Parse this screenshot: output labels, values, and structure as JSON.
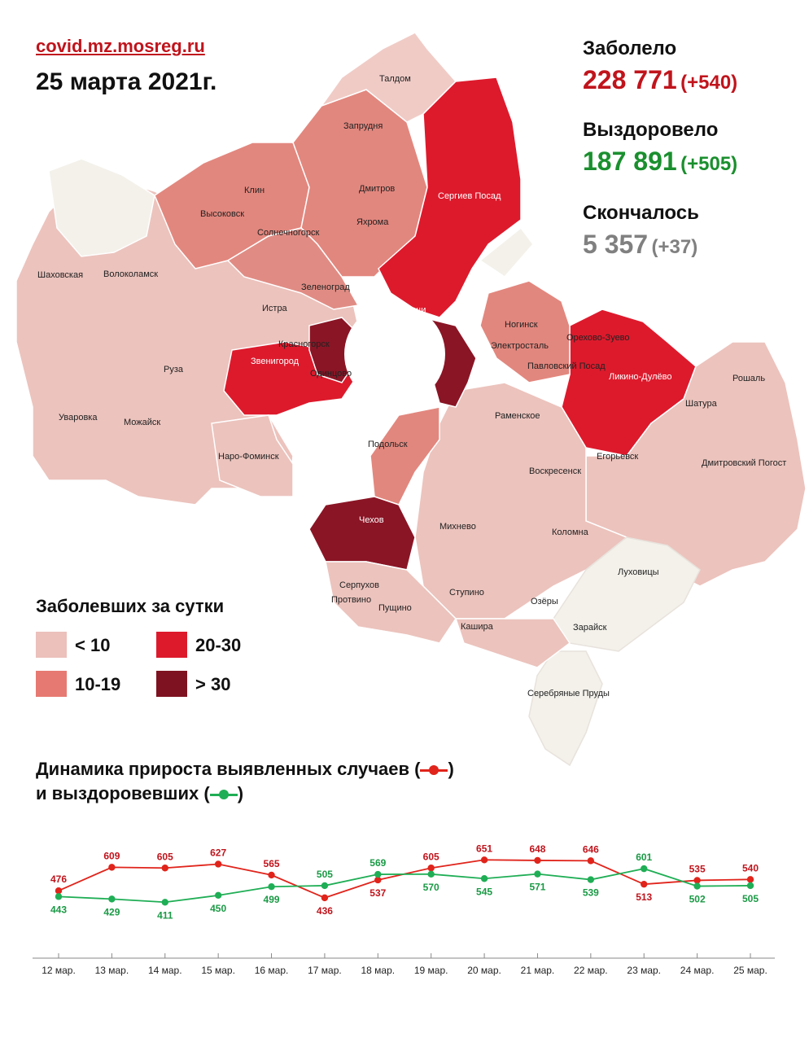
{
  "header": {
    "source": "covid.mz.mosreg.ru",
    "date": "25 марта 2021г."
  },
  "stats": {
    "infected_label": "Заболело",
    "infected_value": "228 771",
    "infected_delta": "(+540)",
    "recovered_label": "Выздоровело",
    "recovered_value": "187 891",
    "recovered_delta": "(+505)",
    "deceased_label": "Скончалось",
    "deceased_value": "5 357",
    "deceased_delta": "(+37)"
  },
  "colors": {
    "accent_red": "#c0141c",
    "recovered_green": "#1a8f2e",
    "deceased_gray": "#808080",
    "lt10": "#ecc0bb",
    "r10_19": "#e67a72",
    "r20_30": "#dd1a2c",
    "gt30": "#7e1220"
  },
  "legend": {
    "title": "Заболевших за сутки",
    "items": [
      {
        "label": "< 10",
        "color": "#ecc0bb"
      },
      {
        "label": "10-19",
        "color": "#e67a72"
      },
      {
        "label": "20-30",
        "color": "#dd1a2c"
      },
      {
        "label": "> 30",
        "color": "#7e1220"
      }
    ]
  },
  "map": {
    "cities": [
      "Талдом",
      "Запрудня",
      "Дмитров",
      "Яхрома",
      "Сергиев Посад",
      "Клин",
      "Высоковск",
      "Солнечногорск",
      "Шаховская",
      "Волоколамск",
      "Зеленоград",
      "Истра",
      "Мытищи",
      "Ногинск",
      "Электросталь",
      "Павловский Посад",
      "Орехово-Зуево",
      "Ликино-Дулёво",
      "Рошаль",
      "Шатура",
      "Красногорск",
      "Звенигород",
      "Одинцово",
      "Руза",
      "Можайск",
      "Уваровка",
      "Наро-Фоминск",
      "Подольск",
      "Раменское",
      "Воскресенск",
      "Егорьевск",
      "Дмитровский Погост",
      "Чехов",
      "Михнево",
      "Коломна",
      "Серпухов",
      "Пущино",
      "Протвино",
      "Ступино",
      "Озёры",
      "Луховицы",
      "Кашира",
      "Зарайск",
      "Серебряные Пруды"
    ]
  },
  "dynamics": {
    "title_line1": "Динамика прироста выявленных случаев (",
    "title_line1_end": ")",
    "title_line2": "и выздоровевших (",
    "title_line2_end": ")"
  },
  "chart_data": {
    "type": "line",
    "categories": [
      "12 мар.",
      "13 мар.",
      "14 мар.",
      "15 мар.",
      "16 мар.",
      "17 мар.",
      "18 мар.",
      "19 мар.",
      "20 мар.",
      "21 мар.",
      "22 мар.",
      "23 мар.",
      "24 мар.",
      "25 мар."
    ],
    "series": [
      {
        "values": [
          476,
          609,
          605,
          627,
          565,
          436,
          537,
          605,
          651,
          648,
          646,
          513,
          535,
          540
        ],
        "color": "#e0241b"
      },
      {
        "values": [
          443,
          429,
          411,
          450,
          499,
          505,
          569,
          570,
          545,
          571,
          539,
          601,
          502,
          505
        ],
        "color": "#1fae55"
      }
    ],
    "ylim": [
      380,
      680
    ],
    "legend": "none",
    "grid": false
  }
}
